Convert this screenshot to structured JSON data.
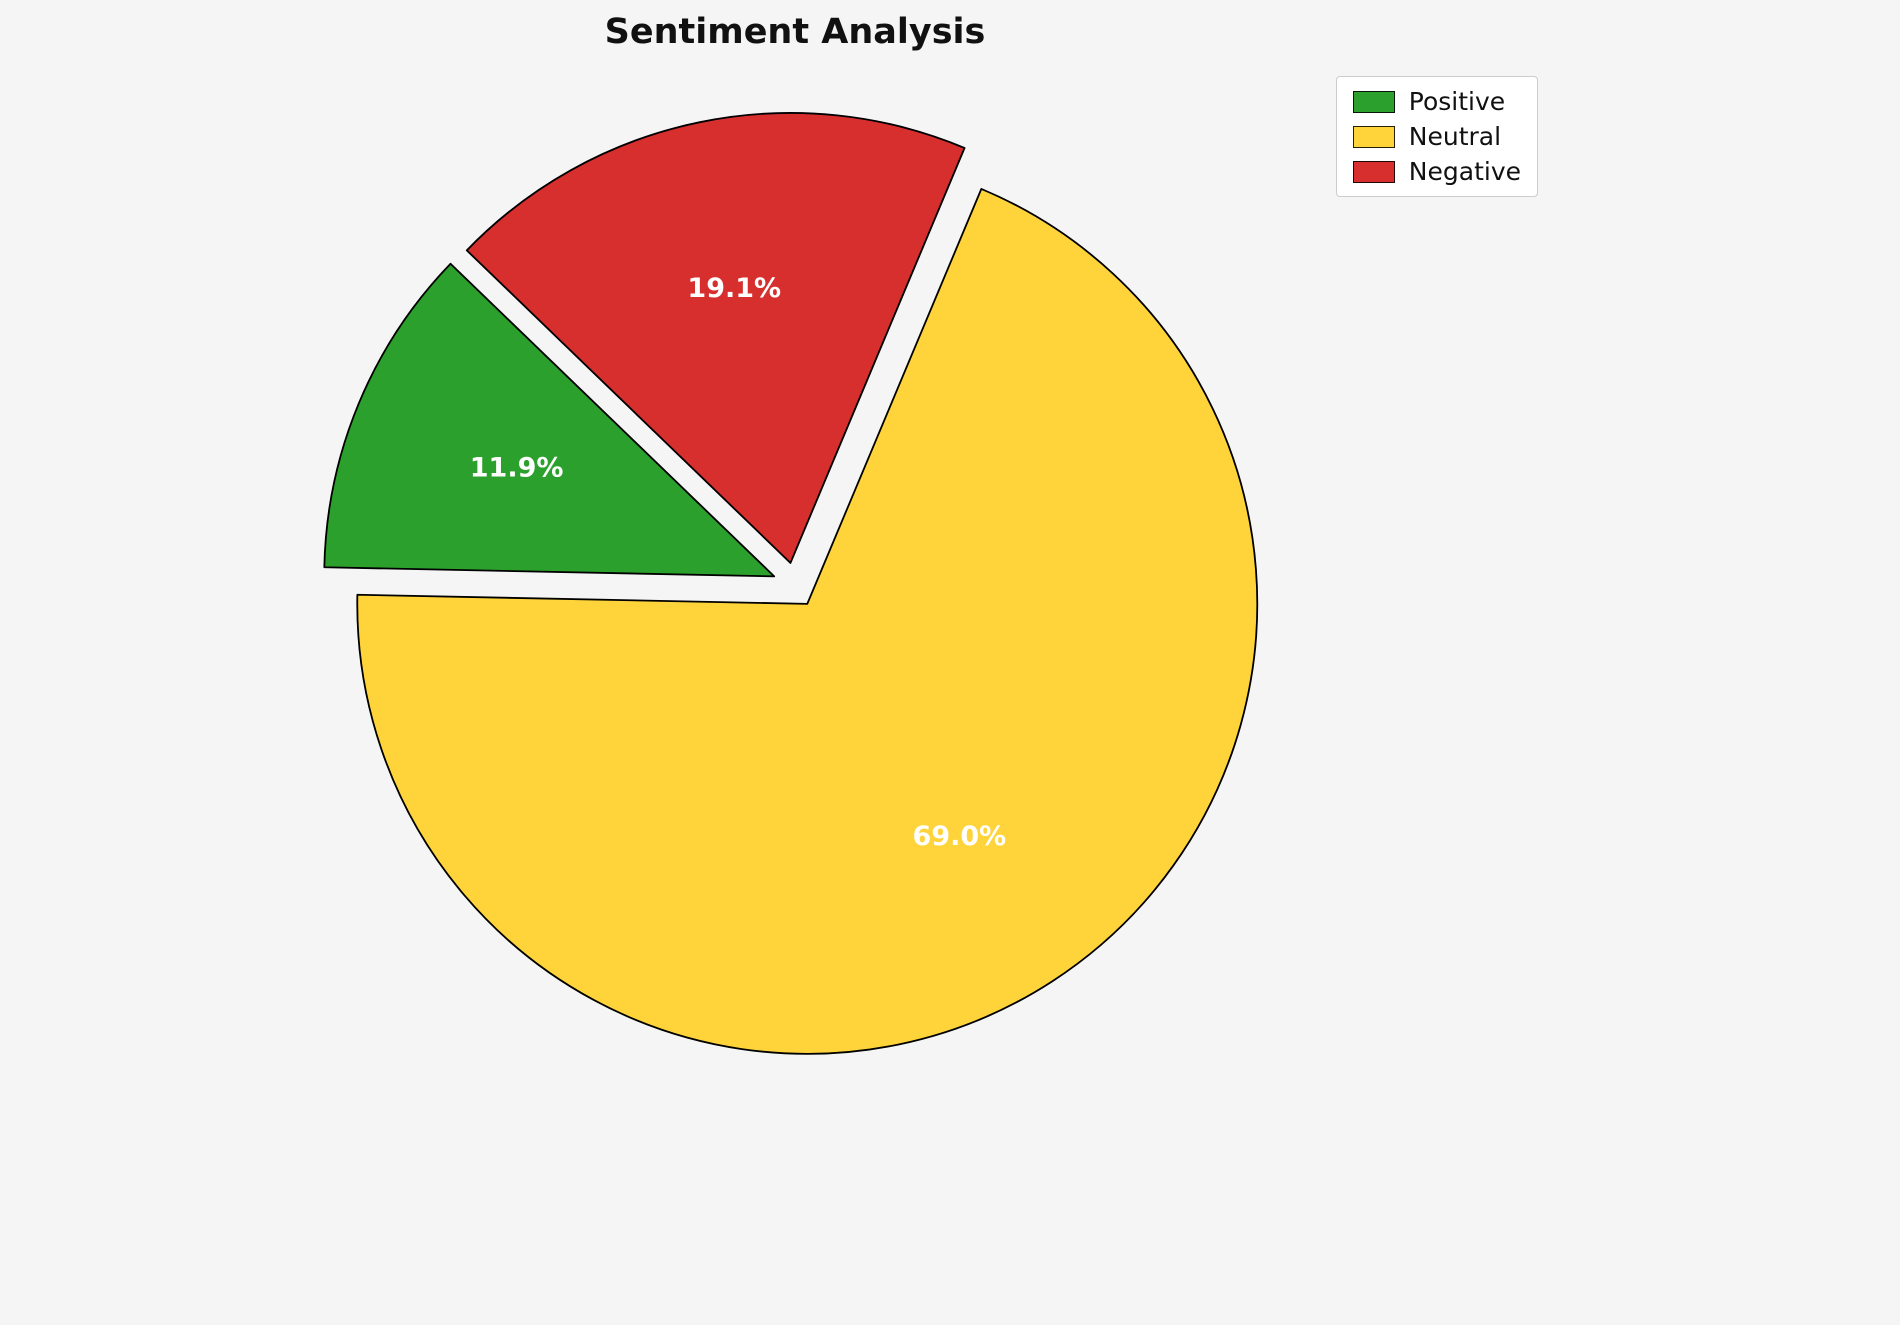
{
  "chart_data": {
    "type": "pie",
    "title": "Sentiment Analysis",
    "labels": [
      "Positive",
      "Neutral",
      "Negative"
    ],
    "values": [
      11.9,
      69.0,
      19.1
    ],
    "pct_labels": [
      "11.9%",
      "69.0%",
      "19.1%"
    ],
    "colors": [
      "#2ca02c",
      "#ffd43b",
      "#d62f2e"
    ],
    "start_angle": 136,
    "counterclock": true,
    "explode": [
      0.05,
      0.05,
      0.05
    ],
    "pct_distance": 0.62,
    "legend_position": "upper right",
    "background": "#f5f5f5",
    "label_color": "#ffffff",
    "edge_color": "#000000"
  }
}
